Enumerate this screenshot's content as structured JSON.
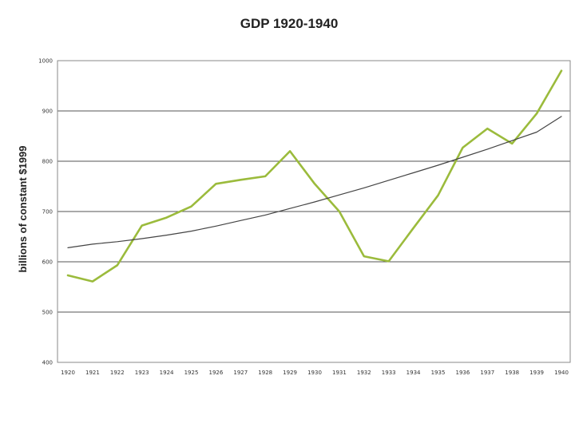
{
  "chart_data": {
    "type": "line",
    "title": "GDP 1920-1940",
    "xlabel": "",
    "ylabel": "billions of constant $1999",
    "x": [
      1920,
      1921,
      1922,
      1923,
      1924,
      1925,
      1926,
      1927,
      1928,
      1929,
      1930,
      1931,
      1932,
      1933,
      1934,
      1935,
      1936,
      1937,
      1938,
      1939,
      1940
    ],
    "ylim": [
      400,
      1000
    ],
    "yticks": [
      400,
      500,
      600,
      700,
      800,
      900,
      1000
    ],
    "grid": true,
    "legend": "none",
    "series": [
      {
        "kind": "gdp",
        "color": "#9bbb3c",
        "values": [
          573,
          561,
          593,
          672,
          688,
          710,
          755,
          763,
          770,
          820,
          755,
          700,
          611,
          601,
          667,
          732,
          827,
          865,
          835,
          895,
          980
        ]
      },
      {
        "kind": "trend",
        "color": "#444444",
        "values": [
          628,
          635,
          640,
          646,
          653,
          661,
          671,
          682,
          693,
          706,
          719,
          733,
          747,
          762,
          777,
          792,
          808,
          824,
          841,
          858,
          889
        ]
      }
    ]
  }
}
